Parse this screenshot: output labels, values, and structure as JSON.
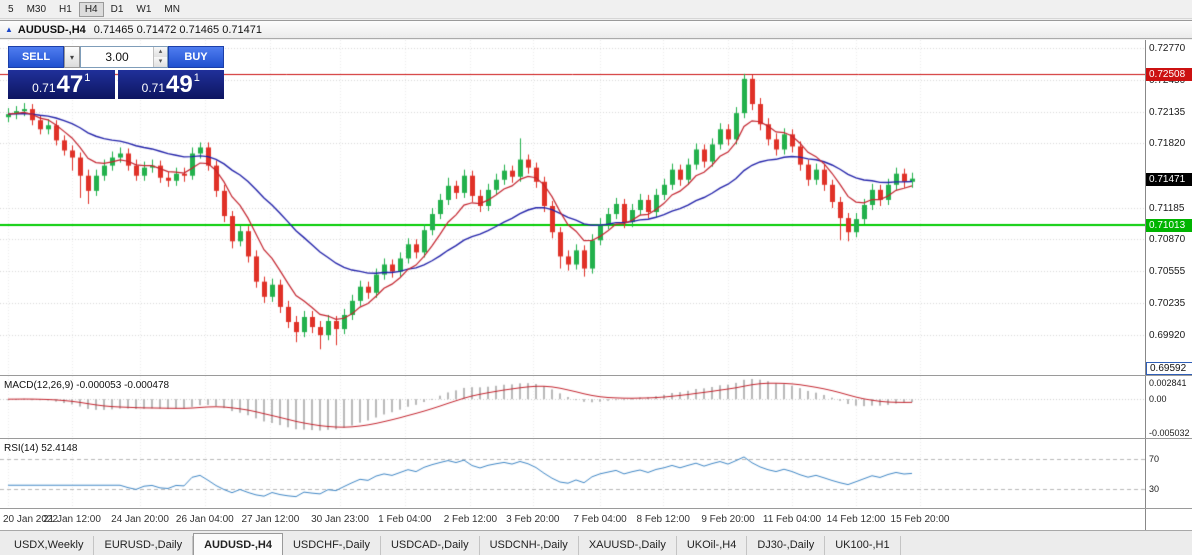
{
  "toolbar": {
    "timeframes": [
      "5",
      "M30",
      "H1",
      "H4",
      "D1",
      "W1",
      "MN"
    ],
    "active": "H4"
  },
  "title_bar": {
    "symbol": "AUDUSD-,H4",
    "ohlc": "0.71465 0.71472 0.71465 0.71471"
  },
  "trade_panel": {
    "sell_label": "SELL",
    "buy_label": "BUY",
    "volume": "3.00",
    "bid": {
      "prefix": "0.71",
      "big": "47",
      "sup": "1"
    },
    "ask": {
      "prefix": "0.71",
      "big": "49",
      "sup": "1"
    }
  },
  "macd": {
    "label": "MACD(12,26,9)",
    "value_main": "-0.000053",
    "value_signal": "-0.000478"
  },
  "rsi": {
    "label": "RSI(14)",
    "value": "52.4148"
  },
  "tabs": {
    "items": [
      "USDX,Weekly",
      "EURUSD-,Daily",
      "AUDUSD-,H4",
      "USDCHF-,Daily",
      "USDCAD-,Daily",
      "USDCNH-,Daily",
      "XAUUSD-,Daily",
      "UKOil-,H4",
      "DJ30-,Daily",
      "UK100-,H1"
    ],
    "active_index": 2
  },
  "chart_data": {
    "type": "candlestick",
    "symbol": "AUDUSD",
    "timeframe": "H4",
    "current_price": 0.71471,
    "current_price_label": "0.71471",
    "colors": {
      "up": "#22b14c",
      "down": "#e03127",
      "ma_slow": "#2323aa",
      "ma_fast": "#c4242e",
      "macd_hist": "#b9b9b9",
      "macd_signal": "#c4242e",
      "rsi_line": "#3f87c6",
      "resistance": "#cc1111",
      "support": "#00cc00"
    },
    "levels": {
      "resistance": {
        "price": 0.72508,
        "label": "0.72508"
      },
      "support": {
        "price": 0.71013,
        "label": "0.71013"
      },
      "lower": {
        "price": 0.69592,
        "label": "0.69592"
      }
    },
    "y_axis": {
      "price_max": 0.72845,
      "price_min": 0.69525,
      "ticks": [
        {
          "label": "0.72770",
          "price": 0.7277
        },
        {
          "label": "0.72450",
          "price": 0.7245
        },
        {
          "label": "0.72135",
          "price": 0.72135
        },
        {
          "label": "0.71820",
          "price": 0.7182
        },
        {
          "label": "0.71185",
          "price": 0.71185
        },
        {
          "label": "0.70870",
          "price": 0.7087
        },
        {
          "label": "0.70555",
          "price": 0.70555
        },
        {
          "label": "0.70235",
          "price": 0.70235
        },
        {
          "label": "0.69920",
          "price": 0.6992
        }
      ]
    },
    "macd_axis": {
      "max": 0.0032,
      "min": -0.0056,
      "ticks": [
        {
          "label": "0.002841",
          "value": 0.002841
        },
        {
          "label": "0.00",
          "value": 0
        },
        {
          "label": "-0.005032",
          "value": -0.005032
        }
      ]
    },
    "rsi_axis": {
      "max": 95,
      "min": 5,
      "ticks": [
        {
          "label": "70",
          "value": 70
        },
        {
          "label": "30",
          "value": 30
        }
      ]
    },
    "ma": {
      "slow_period": 24,
      "fast_period": 7
    },
    "macd_params": [
      12,
      26,
      9
    ],
    "rsi_period": 14,
    "x_labels": [
      {
        "label": "20 Jan 2022",
        "i": 0
      },
      {
        "label": "21 Jan 12:00",
        "i": 8
      },
      {
        "label": "24 Jan 20:00",
        "i": 16.5
      },
      {
        "label": "26 Jan 04:00",
        "i": 24.6
      },
      {
        "label": "27 Jan 12:00",
        "i": 32.8
      },
      {
        "label": "30 Jan 23:00",
        "i": 41.5
      },
      {
        "label": "1 Feb 04:00",
        "i": 49.6
      },
      {
        "label": "2 Feb 12:00",
        "i": 57.8
      },
      {
        "label": "3 Feb 20:00",
        "i": 65.6
      },
      {
        "label": "7 Feb 04:00",
        "i": 74
      },
      {
        "label": "8 Feb 12:00",
        "i": 81.9
      },
      {
        "label": "9 Feb 20:00",
        "i": 90
      },
      {
        "label": "11 Feb 04:00",
        "i": 98
      },
      {
        "label": "14 Feb 12:00",
        "i": 106
      },
      {
        "label": "15 Feb 20:00",
        "i": 114
      }
    ],
    "candles": [
      [
        0.7208,
        0.7217,
        0.7203,
        0.7211
      ],
      [
        0.7211,
        0.7219,
        0.7206,
        0.7214
      ],
      [
        0.7214,
        0.7222,
        0.7209,
        0.7216
      ],
      [
        0.7216,
        0.7221,
        0.72,
        0.7205
      ],
      [
        0.7205,
        0.721,
        0.7191,
        0.7196
      ],
      [
        0.7196,
        0.7206,
        0.7191,
        0.72
      ],
      [
        0.72,
        0.7205,
        0.718,
        0.7185
      ],
      [
        0.7185,
        0.719,
        0.717,
        0.7175
      ],
      [
        0.7175,
        0.718,
        0.7155,
        0.7168
      ],
      [
        0.7168,
        0.7173,
        0.7128,
        0.715
      ],
      [
        0.715,
        0.7156,
        0.7122,
        0.7135
      ],
      [
        0.7135,
        0.7156,
        0.713,
        0.715
      ],
      [
        0.715,
        0.7166,
        0.7145,
        0.716
      ],
      [
        0.716,
        0.7174,
        0.7155,
        0.7168
      ],
      [
        0.7168,
        0.7178,
        0.7163,
        0.7172
      ],
      [
        0.7172,
        0.7177,
        0.7155,
        0.716
      ],
      [
        0.716,
        0.7166,
        0.7145,
        0.715
      ],
      [
        0.715,
        0.7164,
        0.7145,
        0.7158
      ],
      [
        0.7158,
        0.7166,
        0.7153,
        0.716
      ],
      [
        0.716,
        0.7165,
        0.7143,
        0.7148
      ],
      [
        0.7148,
        0.7154,
        0.7139,
        0.7145
      ],
      [
        0.7145,
        0.7158,
        0.714,
        0.7152
      ],
      [
        0.7152,
        0.7158,
        0.7144,
        0.715
      ],
      [
        0.715,
        0.7178,
        0.7146,
        0.7172
      ],
      [
        0.7172,
        0.7183,
        0.7167,
        0.7178
      ],
      [
        0.7178,
        0.7183,
        0.7155,
        0.716
      ],
      [
        0.716,
        0.7165,
        0.7129,
        0.7135
      ],
      [
        0.7135,
        0.7141,
        0.7104,
        0.711
      ],
      [
        0.711,
        0.7115,
        0.7078,
        0.7085
      ],
      [
        0.7085,
        0.7101,
        0.708,
        0.7095
      ],
      [
        0.7095,
        0.71,
        0.7064,
        0.707
      ],
      [
        0.707,
        0.7076,
        0.7039,
        0.7045
      ],
      [
        0.7045,
        0.705,
        0.7024,
        0.703
      ],
      [
        0.703,
        0.7048,
        0.7025,
        0.7042
      ],
      [
        0.7042,
        0.7047,
        0.7014,
        0.702
      ],
      [
        0.702,
        0.7026,
        0.6999,
        0.7005
      ],
      [
        0.7005,
        0.7011,
        0.6985,
        0.6995
      ],
      [
        0.6995,
        0.7016,
        0.699,
        0.701
      ],
      [
        0.701,
        0.7016,
        0.6994,
        0.7
      ],
      [
        0.7,
        0.7006,
        0.6978,
        0.6992
      ],
      [
        0.6992,
        0.7012,
        0.6987,
        0.7006
      ],
      [
        0.7006,
        0.7011,
        0.6982,
        0.6998
      ],
      [
        0.6998,
        0.7018,
        0.6993,
        0.7012
      ],
      [
        0.7012,
        0.7032,
        0.7007,
        0.7026
      ],
      [
        0.7026,
        0.7046,
        0.7021,
        0.704
      ],
      [
        0.704,
        0.7045,
        0.7028,
        0.7034
      ],
      [
        0.7034,
        0.7058,
        0.7029,
        0.7052
      ],
      [
        0.7052,
        0.7068,
        0.7047,
        0.7062
      ],
      [
        0.7062,
        0.7067,
        0.7049,
        0.7055
      ],
      [
        0.7055,
        0.7074,
        0.705,
        0.7068
      ],
      [
        0.7068,
        0.7088,
        0.7063,
        0.7082
      ],
      [
        0.7082,
        0.7087,
        0.7068,
        0.7074
      ],
      [
        0.7074,
        0.7102,
        0.7069,
        0.7096
      ],
      [
        0.7096,
        0.7118,
        0.7091,
        0.7112
      ],
      [
        0.7112,
        0.7132,
        0.7107,
        0.7126
      ],
      [
        0.7126,
        0.7148,
        0.7121,
        0.714
      ],
      [
        0.714,
        0.7145,
        0.7127,
        0.7133
      ],
      [
        0.7133,
        0.7156,
        0.7128,
        0.715
      ],
      [
        0.715,
        0.7155,
        0.7124,
        0.713
      ],
      [
        0.713,
        0.7136,
        0.7114,
        0.712
      ],
      [
        0.712,
        0.7142,
        0.7115,
        0.7136
      ],
      [
        0.7136,
        0.7152,
        0.7131,
        0.7146
      ],
      [
        0.7146,
        0.7161,
        0.7141,
        0.7155
      ],
      [
        0.7155,
        0.716,
        0.7143,
        0.7149
      ],
      [
        0.7149,
        0.7187,
        0.7144,
        0.7166
      ],
      [
        0.7166,
        0.7171,
        0.7152,
        0.7158
      ],
      [
        0.7158,
        0.7163,
        0.7138,
        0.7144
      ],
      [
        0.7144,
        0.7149,
        0.7114,
        0.712
      ],
      [
        0.712,
        0.7125,
        0.7088,
        0.7094
      ],
      [
        0.7094,
        0.7099,
        0.7058,
        0.707
      ],
      [
        0.707,
        0.7076,
        0.7056,
        0.7062
      ],
      [
        0.7062,
        0.7082,
        0.7057,
        0.7076
      ],
      [
        0.7076,
        0.7081,
        0.705,
        0.7058
      ],
      [
        0.7058,
        0.7092,
        0.7053,
        0.7086
      ],
      [
        0.7086,
        0.7108,
        0.7081,
        0.7102
      ],
      [
        0.7102,
        0.7118,
        0.7097,
        0.7112
      ],
      [
        0.7112,
        0.7128,
        0.7107,
        0.7122
      ],
      [
        0.7122,
        0.7127,
        0.7098,
        0.7104
      ],
      [
        0.7104,
        0.7122,
        0.7099,
        0.7116
      ],
      [
        0.7116,
        0.7132,
        0.7111,
        0.7126
      ],
      [
        0.7126,
        0.7131,
        0.7108,
        0.7114
      ],
      [
        0.7114,
        0.7137,
        0.7109,
        0.7131
      ],
      [
        0.7131,
        0.7147,
        0.7126,
        0.7141
      ],
      [
        0.7141,
        0.7162,
        0.7136,
        0.7156
      ],
      [
        0.7156,
        0.7161,
        0.714,
        0.7146
      ],
      [
        0.7146,
        0.7167,
        0.7141,
        0.7161
      ],
      [
        0.7161,
        0.7182,
        0.7156,
        0.7176
      ],
      [
        0.7176,
        0.7181,
        0.7158,
        0.7164
      ],
      [
        0.7164,
        0.7187,
        0.7159,
        0.7181
      ],
      [
        0.7181,
        0.7202,
        0.7176,
        0.7196
      ],
      [
        0.7196,
        0.7201,
        0.718,
        0.7186
      ],
      [
        0.7186,
        0.7218,
        0.7181,
        0.7212
      ],
      [
        0.7212,
        0.7251,
        0.7207,
        0.7246
      ],
      [
        0.7246,
        0.725,
        0.7215,
        0.7221
      ],
      [
        0.7221,
        0.7227,
        0.7195,
        0.7201
      ],
      [
        0.7201,
        0.7207,
        0.718,
        0.7186
      ],
      [
        0.7186,
        0.7192,
        0.717,
        0.7176
      ],
      [
        0.7176,
        0.7197,
        0.7171,
        0.7191
      ],
      [
        0.7191,
        0.7196,
        0.7173,
        0.7179
      ],
      [
        0.7179,
        0.7184,
        0.7155,
        0.7161
      ],
      [
        0.7161,
        0.7166,
        0.714,
        0.7146
      ],
      [
        0.7146,
        0.7162,
        0.7141,
        0.7156
      ],
      [
        0.7156,
        0.7161,
        0.7135,
        0.7141
      ],
      [
        0.7141,
        0.7146,
        0.7118,
        0.7124
      ],
      [
        0.7124,
        0.7129,
        0.7086,
        0.7108
      ],
      [
        0.7108,
        0.7113,
        0.7085,
        0.7094
      ],
      [
        0.7094,
        0.7113,
        0.7089,
        0.7107
      ],
      [
        0.7107,
        0.7127,
        0.7102,
        0.7121
      ],
      [
        0.7121,
        0.7142,
        0.7116,
        0.7136
      ],
      [
        0.7136,
        0.7141,
        0.712,
        0.7126
      ],
      [
        0.7126,
        0.7147,
        0.7121,
        0.7141
      ],
      [
        0.7141,
        0.7158,
        0.7136,
        0.7152
      ],
      [
        0.7152,
        0.7157,
        0.7138,
        0.7144
      ],
      [
        0.7144,
        0.7153,
        0.7138,
        0.71471
      ]
    ]
  }
}
